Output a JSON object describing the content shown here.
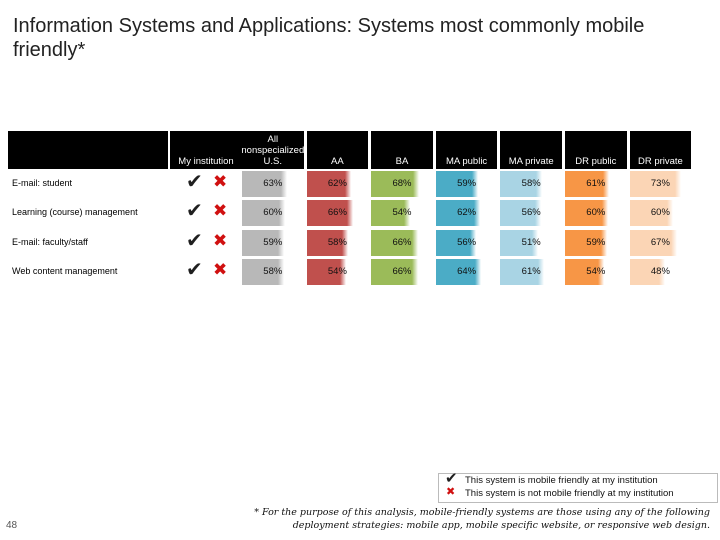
{
  "title": "Information Systems and Applications: Systems most commonly mobile friendly*",
  "chart_data": {
    "type": "table",
    "columns": [
      "My institution",
      "All nonspecialized U.S.",
      "AA",
      "BA",
      "MA public",
      "MA private",
      "DR public",
      "DR private"
    ],
    "rows": [
      {
        "label": "E-mail: student",
        "my_institution": [
          "yes",
          "no"
        ],
        "values": [
          "63%",
          "62%",
          "68%",
          "59%",
          "58%",
          "61%",
          "73%"
        ],
        "percent": [
          63,
          62,
          68,
          59,
          58,
          61,
          73
        ]
      },
      {
        "label": "Learning (course) management",
        "my_institution": [
          "yes",
          "no"
        ],
        "values": [
          "60%",
          "66%",
          "54%",
          "62%",
          "56%",
          "60%",
          "60%"
        ],
        "percent": [
          60,
          66,
          54,
          62,
          56,
          60,
          60
        ]
      },
      {
        "label": "E-mail: faculty/staff",
        "my_institution": [
          "yes",
          "no"
        ],
        "values": [
          "59%",
          "58%",
          "66%",
          "56%",
          "51%",
          "59%",
          "67%"
        ],
        "percent": [
          59,
          58,
          66,
          56,
          51,
          59,
          67
        ]
      },
      {
        "label": "Web content management",
        "my_institution": [
          "yes",
          "no"
        ],
        "values": [
          "58%",
          "54%",
          "66%",
          "64%",
          "61%",
          "54%",
          "48%"
        ],
        "percent": [
          58,
          54,
          66,
          64,
          61,
          54,
          48
        ]
      }
    ],
    "column_colors": [
      "#b8b8b8",
      "#c0504d",
      "#9bbb59",
      "#4bacc6",
      "#a9d4e4",
      "#f79646",
      "#fbd5b5"
    ],
    "header_bg": "#000000"
  },
  "icons": {
    "yes": "check-mark-icon",
    "no": "red-x-icon"
  },
  "glyphs": {
    "yes": "✔",
    "no": "✖"
  },
  "legend": {
    "yes_text": "This system is mobile friendly at my institution",
    "no_text": "This system is not mobile friendly at my institution"
  },
  "footnote": "* For the purpose of this analysis, mobile-friendly systems are those using any of the following deployment strategies: mobile app, mobile specific website, or responsive web design.",
  "page_number": "48"
}
